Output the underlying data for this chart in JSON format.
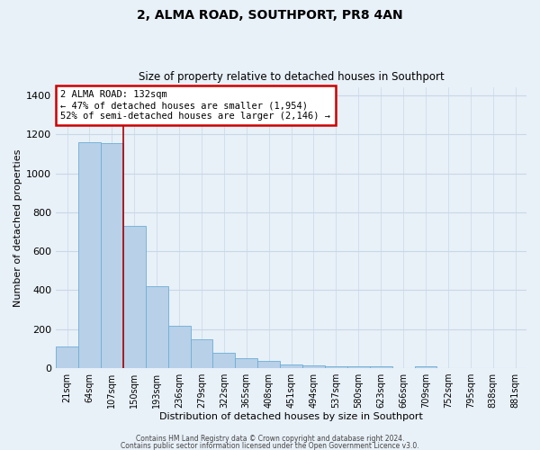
{
  "title": "2, ALMA ROAD, SOUTHPORT, PR8 4AN",
  "subtitle": "Size of property relative to detached houses in Southport",
  "xlabel": "Distribution of detached houses by size in Southport",
  "ylabel": "Number of detached properties",
  "bar_labels": [
    "21sqm",
    "64sqm",
    "107sqm",
    "150sqm",
    "193sqm",
    "236sqm",
    "279sqm",
    "322sqm",
    "365sqm",
    "408sqm",
    "451sqm",
    "494sqm",
    "537sqm",
    "580sqm",
    "623sqm",
    "666sqm",
    "709sqm",
    "752sqm",
    "795sqm",
    "838sqm",
    "881sqm"
  ],
  "bar_values": [
    110,
    1160,
    1155,
    730,
    420,
    215,
    150,
    78,
    52,
    35,
    20,
    15,
    10,
    8,
    10,
    0,
    10,
    0,
    0,
    0,
    0
  ],
  "bar_color": "#b8d0e8",
  "bar_edge_color": "#6baed6",
  "bar_width": 1.0,
  "grid_color": "#c8d8e8",
  "background_color": "#e8f0f8",
  "vline_x": 2.5,
  "vline_color": "#aa0000",
  "annotation_title": "2 ALMA ROAD: 132sqm",
  "annotation_line1": "← 47% of detached houses are smaller (1,954)",
  "annotation_line2": "52% of semi-detached houses are larger (2,146) →",
  "annotation_box_color": "#ffffff",
  "annotation_box_edge": "#cc0000",
  "ylim": [
    0,
    1440
  ],
  "yticks": [
    0,
    200,
    400,
    600,
    800,
    1000,
    1200,
    1400
  ],
  "footer1": "Contains HM Land Registry data © Crown copyright and database right 2024.",
  "footer2": "Contains public sector information licensed under the Open Government Licence v3.0."
}
